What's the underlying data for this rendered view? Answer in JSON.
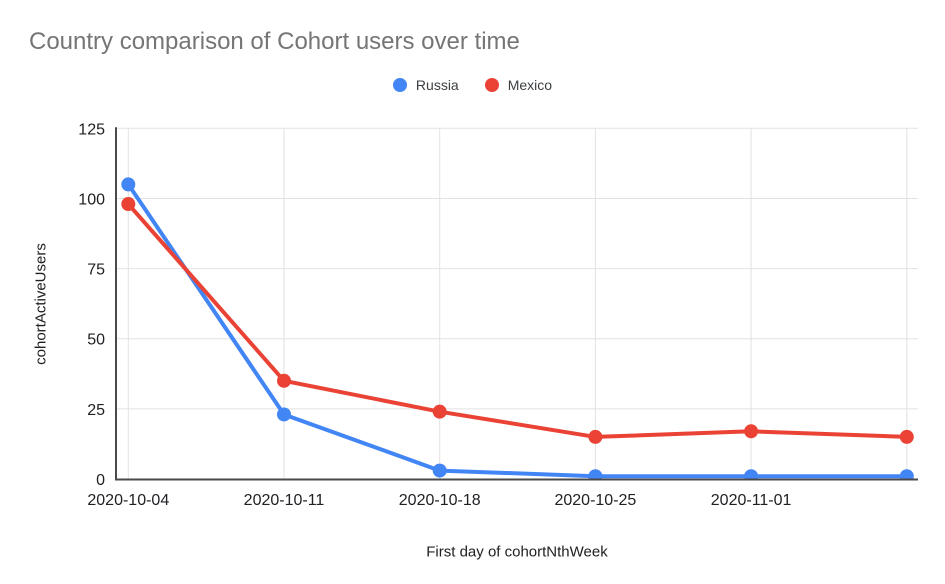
{
  "chart_data": {
    "type": "line",
    "title": "Country comparison of Cohort users over time",
    "xlabel": "First day of cohortNthWeek",
    "ylabel": "cohortActiveUsers",
    "categories": [
      "2020-10-04",
      "2020-10-11",
      "2020-10-18",
      "2020-10-25",
      "2020-11-01",
      ""
    ],
    "series": [
      {
        "name": "Russia",
        "color": "#4285F4",
        "values": [
          105,
          23,
          3,
          1,
          1,
          1
        ]
      },
      {
        "name": "Mexico",
        "color": "#EA4335",
        "values": [
          98,
          35,
          24,
          15,
          17,
          15
        ]
      }
    ],
    "ylim": [
      0,
      125
    ],
    "yticks": [
      0,
      25,
      50,
      75,
      100,
      125
    ],
    "grid": true,
    "legend_position": "top-center"
  },
  "colors": {
    "background": "#ffffff",
    "title_text": "#757575",
    "legend_text": "#3c4043",
    "tick_text": "#202124",
    "axis_title_text": "#202124",
    "axis_line": "#4a4a4a",
    "gridline": "#e2e2e2"
  }
}
